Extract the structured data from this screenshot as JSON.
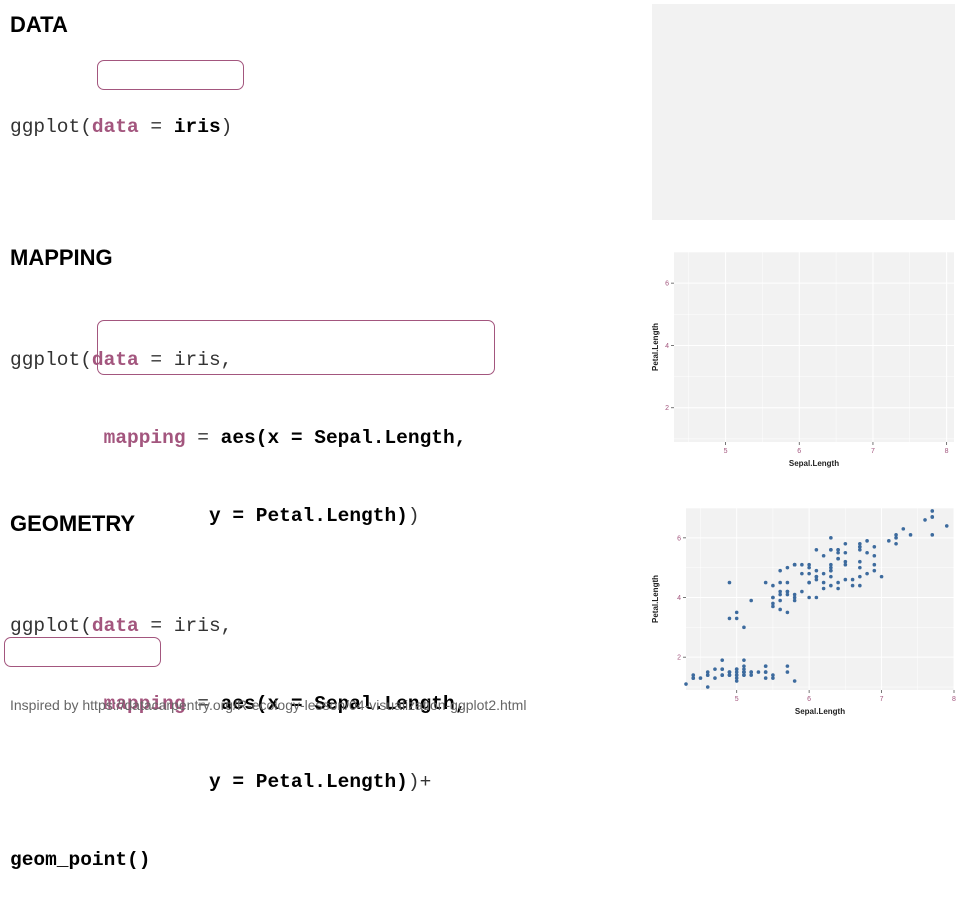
{
  "sections": [
    {
      "heading": "DATA",
      "code": {
        "fn": "ggplot(",
        "kw_data": "data",
        "eq": " = ",
        "val": "iris",
        "close": ")"
      }
    },
    {
      "heading": "MAPPING",
      "code": {
        "fn": "ggplot(",
        "kw_data": "data",
        "eq": " = ",
        "val": "iris,",
        "indent": "        ",
        "kw_mapping": "mapping",
        "aes_x": "aes(x = Sepal.Length,",
        "indent2": "                 ",
        "aes_y": "y = Petal.Length)",
        "close": ")"
      }
    },
    {
      "heading": "GEOMETRY",
      "code": {
        "fn": "ggplot(",
        "kw_data": "data",
        "eq": " = ",
        "val": "iris,",
        "indent": "        ",
        "kw_mapping": "mapping",
        "aes_x": "aes(x = Sepal.Length,",
        "indent2": "                 ",
        "aes_y": "y = Petal.Length)",
        "close": ")",
        "plus": "+",
        "geom": "geom_point()"
      }
    }
  ],
  "footer": "Inspired by https://datacarpentry.org/R-ecology-lesson/04-visualization-ggplot2.html",
  "colors": {
    "keyword": "#a3567e",
    "panel_bg": "#f2f2f2",
    "grid": "#ffffff",
    "point": "#3d6b9e"
  },
  "chart_data": [
    {
      "type": "scatter",
      "title": "",
      "xlabel": "",
      "ylabel": "",
      "x": [],
      "y": []
    },
    {
      "type": "scatter",
      "title": "",
      "xlabel": "Sepal.Length",
      "ylabel": "Petal.Length",
      "xlim": [
        4.3,
        8.1
      ],
      "ylim": [
        0.9,
        7.0
      ],
      "xticks": [
        "5",
        "6",
        "7",
        "8"
      ],
      "yticks": [
        "2",
        "4",
        "6"
      ],
      "x": [],
      "y": []
    },
    {
      "type": "scatter",
      "title": "",
      "xlabel": "Sepal.Length",
      "ylabel": "Petal.Length",
      "xlim": [
        4.3,
        8.0
      ],
      "ylim": [
        0.9,
        7.0
      ],
      "xticks": [
        "5",
        "6",
        "7",
        "8"
      ],
      "yticks": [
        "2",
        "4",
        "6"
      ],
      "x": [
        5.1,
        4.9,
        4.7,
        4.6,
        5.0,
        5.4,
        4.6,
        5.0,
        4.4,
        4.9,
        5.4,
        4.8,
        4.8,
        4.3,
        5.8,
        5.7,
        5.4,
        5.1,
        5.7,
        5.1,
        5.4,
        5.1,
        4.6,
        5.1,
        4.8,
        5.0,
        5.0,
        5.2,
        5.2,
        4.7,
        4.8,
        5.4,
        5.2,
        5.5,
        4.9,
        5.0,
        5.5,
        4.9,
        4.4,
        5.1,
        5.0,
        4.5,
        4.4,
        5.0,
        5.1,
        4.8,
        5.1,
        4.6,
        5.3,
        5.0,
        7.0,
        6.4,
        6.9,
        5.5,
        6.5,
        5.7,
        6.3,
        4.9,
        6.6,
        5.2,
        5.0,
        5.9,
        6.0,
        6.1,
        5.6,
        6.7,
        5.6,
        5.8,
        6.2,
        5.6,
        5.9,
        6.1,
        6.3,
        6.1,
        6.4,
        6.6,
        6.8,
        6.7,
        6.0,
        5.7,
        5.5,
        5.5,
        5.8,
        6.0,
        5.4,
        6.0,
        6.7,
        6.3,
        5.6,
        5.5,
        5.5,
        6.1,
        5.8,
        5.0,
        5.6,
        5.7,
        5.7,
        6.2,
        5.1,
        5.7,
        6.3,
        5.8,
        7.1,
        6.3,
        6.5,
        7.6,
        4.9,
        7.3,
        6.7,
        7.2,
        6.5,
        6.4,
        6.8,
        5.7,
        5.8,
        6.4,
        6.5,
        7.7,
        7.7,
        6.0,
        6.9,
        5.6,
        7.7,
        6.3,
        6.7,
        7.2,
        6.2,
        6.1,
        6.4,
        7.2,
        7.4,
        7.9,
        6.4,
        6.3,
        6.1,
        7.7,
        6.3,
        6.4,
        6.0,
        6.9,
        6.7,
        6.9,
        5.8,
        6.8,
        6.7,
        6.7,
        6.3,
        6.5,
        6.2,
        5.9
      ],
      "y": [
        1.4,
        1.4,
        1.3,
        1.5,
        1.4,
        1.7,
        1.4,
        1.5,
        1.4,
        1.5,
        1.5,
        1.6,
        1.4,
        1.1,
        1.2,
        1.5,
        1.3,
        1.4,
        1.7,
        1.5,
        1.7,
        1.5,
        1.0,
        1.7,
        1.9,
        1.6,
        1.6,
        1.5,
        1.4,
        1.6,
        1.6,
        1.5,
        1.5,
        1.4,
        1.5,
        1.2,
        1.3,
        1.4,
        1.3,
        1.5,
        1.3,
        1.3,
        1.3,
        1.6,
        1.9,
        1.4,
        1.6,
        1.4,
        1.5,
        1.4,
        4.7,
        4.5,
        4.9,
        4.0,
        4.6,
        4.5,
        4.7,
        3.3,
        4.6,
        3.9,
        3.5,
        4.2,
        4.0,
        4.7,
        3.6,
        4.4,
        4.5,
        4.1,
        4.5,
        3.9,
        4.8,
        4.0,
        4.9,
        4.7,
        4.3,
        4.4,
        4.8,
        5.0,
        4.5,
        3.5,
        3.8,
        3.7,
        3.9,
        5.1,
        4.5,
        4.5,
        4.7,
        4.4,
        4.1,
        4.0,
        4.4,
        4.6,
        4.0,
        3.3,
        4.2,
        4.2,
        4.2,
        4.3,
        3.0,
        4.1,
        6.0,
        5.1,
        5.9,
        5.6,
        5.8,
        6.6,
        4.5,
        6.3,
        5.8,
        6.1,
        5.1,
        5.3,
        5.5,
        5.0,
        5.1,
        5.3,
        5.5,
        6.7,
        6.9,
        5.0,
        5.7,
        4.9,
        6.7,
        4.9,
        5.7,
        6.0,
        4.8,
        4.9,
        5.6,
        5.8,
        6.1,
        6.4,
        5.6,
        5.1,
        5.6,
        6.1,
        5.6,
        5.5,
        4.8,
        5.4,
        5.6,
        5.1,
        5.1,
        5.9,
        5.7,
        5.2,
        5.0,
        5.2,
        5.4,
        5.1
      ]
    }
  ]
}
